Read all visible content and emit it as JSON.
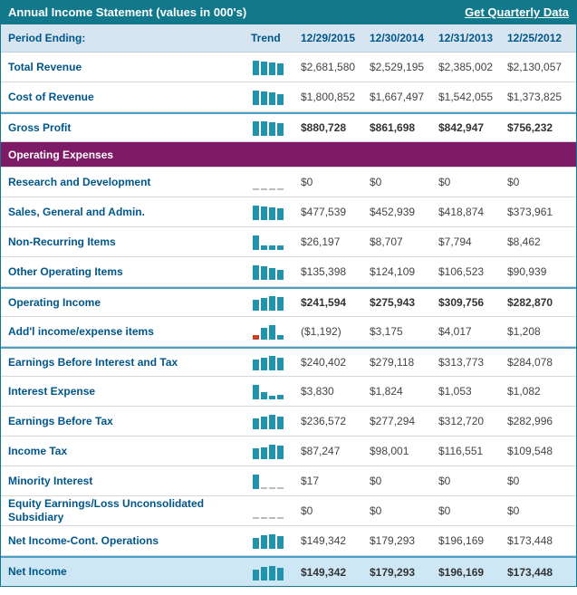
{
  "header": {
    "title": "Annual Income Statement (values in 000's)",
    "quarterly_link": "Get Quarterly Data"
  },
  "table": {
    "period_label": "Period Ending:",
    "trend_label": "Trend",
    "dates": [
      "12/29/2015",
      "12/30/2014",
      "12/31/2013",
      "12/25/2012"
    ]
  },
  "colors": {
    "titlebar_bg": "#12798d",
    "section_bg": "#7d1b67",
    "label_blue": "#00568a",
    "trend_bar": "#2293ad",
    "trend_bar_negative": "#cc4125",
    "highlight_row_bg": "#cde7f4"
  },
  "rows": [
    {
      "label": "Total Revenue",
      "values": [
        "$2,681,580",
        "$2,529,195",
        "$2,385,002",
        "$2,130,057"
      ],
      "trend": [
        2681580,
        2529195,
        2385002,
        2130057
      ],
      "bold": false,
      "separator": false,
      "highlight": false
    },
    {
      "label": "Cost of Revenue",
      "values": [
        "$1,800,852",
        "$1,667,497",
        "$1,542,055",
        "$1,373,825"
      ],
      "trend": [
        1800852,
        1667497,
        1542055,
        1373825
      ],
      "bold": false,
      "separator": false,
      "highlight": false
    },
    {
      "label": "Gross Profit",
      "values": [
        "$880,728",
        "$861,698",
        "$842,947",
        "$756,232"
      ],
      "trend": [
        880728,
        861698,
        842947,
        756232
      ],
      "bold": true,
      "separator": true,
      "highlight": false
    },
    {
      "type": "section",
      "label": "Operating Expenses"
    },
    {
      "label": "Research and Development",
      "values": [
        "$0",
        "$0",
        "$0",
        "$0"
      ],
      "trend": [
        0,
        0,
        0,
        0
      ],
      "bold": false,
      "separator": false,
      "highlight": false
    },
    {
      "label": "Sales, General and Admin.",
      "values": [
        "$477,539",
        "$452,939",
        "$418,874",
        "$373,961"
      ],
      "trend": [
        477539,
        452939,
        418874,
        373961
      ],
      "bold": false,
      "separator": false,
      "highlight": false
    },
    {
      "label": "Non-Recurring Items",
      "values": [
        "$26,197",
        "$8,707",
        "$7,794",
        "$8,462"
      ],
      "trend": [
        26197,
        8707,
        7794,
        8462
      ],
      "bold": false,
      "separator": false,
      "highlight": false
    },
    {
      "label": "Other Operating Items",
      "values": [
        "$135,398",
        "$124,109",
        "$106,523",
        "$90,939"
      ],
      "trend": [
        135398,
        124109,
        106523,
        90939
      ],
      "bold": false,
      "separator": false,
      "highlight": false
    },
    {
      "label": "Operating Income",
      "values": [
        "$241,594",
        "$275,943",
        "$309,756",
        "$282,870"
      ],
      "trend": [
        241594,
        275943,
        309756,
        282870
      ],
      "bold": true,
      "separator": true,
      "highlight": false
    },
    {
      "label": "Add'l income/expense items",
      "values": [
        "($1,192)",
        "$3,175",
        "$4,017",
        "$1,208"
      ],
      "trend": [
        -1192,
        3175,
        4017,
        1208
      ],
      "bold": false,
      "separator": false,
      "highlight": false
    },
    {
      "label": "Earnings Before Interest and Tax",
      "values": [
        "$240,402",
        "$279,118",
        "$313,773",
        "$284,078"
      ],
      "trend": [
        240402,
        279118,
        313773,
        284078
      ],
      "bold": false,
      "separator": true,
      "highlight": false
    },
    {
      "label": "Interest Expense",
      "values": [
        "$3,830",
        "$1,824",
        "$1,053",
        "$1,082"
      ],
      "trend": [
        3830,
        1824,
        1053,
        1082
      ],
      "bold": false,
      "separator": false,
      "highlight": false
    },
    {
      "label": "Earnings Before Tax",
      "values": [
        "$236,572",
        "$277,294",
        "$312,720",
        "$282,996"
      ],
      "trend": [
        236572,
        277294,
        312720,
        282996
      ],
      "bold": false,
      "separator": false,
      "highlight": false
    },
    {
      "label": "Income Tax",
      "values": [
        "$87,247",
        "$98,001",
        "$116,551",
        "$109,548"
      ],
      "trend": [
        87247,
        98001,
        116551,
        109548
      ],
      "bold": false,
      "separator": false,
      "highlight": false
    },
    {
      "label": "Minority Interest",
      "values": [
        "$17",
        "$0",
        "$0",
        "$0"
      ],
      "trend": [
        17,
        0,
        0,
        0
      ],
      "bold": false,
      "separator": false,
      "highlight": false
    },
    {
      "label": "Equity Earnings/Loss Unconsolidated Subsidiary",
      "values": [
        "$0",
        "$0",
        "$0",
        "$0"
      ],
      "trend": [
        0,
        0,
        0,
        0
      ],
      "bold": false,
      "separator": false,
      "highlight": false
    },
    {
      "label": "Net Income-Cont. Operations",
      "values": [
        "$149,342",
        "$179,293",
        "$196,169",
        "$173,448"
      ],
      "trend": [
        149342,
        179293,
        196169,
        173448
      ],
      "bold": false,
      "separator": false,
      "highlight": false
    },
    {
      "label": "Net Income",
      "values": [
        "$149,342",
        "$179,293",
        "$196,169",
        "$173,448"
      ],
      "trend": [
        149342,
        179293,
        196169,
        173448
      ],
      "bold": true,
      "separator": true,
      "highlight": true
    }
  ]
}
